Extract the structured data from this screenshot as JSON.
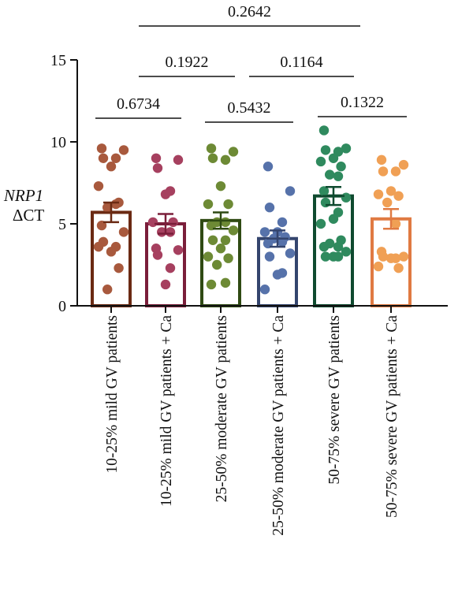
{
  "chart_data": {
    "type": "bar",
    "ylabel_gene": "NRP1",
    "ylabel_metric": "ΔCT",
    "ylim": [
      0,
      15
    ],
    "yticks": [
      "0",
      "5",
      "10",
      "15"
    ],
    "categories": [
      "10-25% mild GV patients",
      "10-25% mild GV patients + Ca",
      "25-50% moderate GV patients",
      "25-50% moderate GV patients + Ca",
      "50-75% severe GV patients",
      "50-75% severe GV patients + Ca"
    ],
    "colors": [
      "#7a3218",
      "#8a2745",
      "#4e6a22",
      "#3f5a8f",
      "#1c5a3e",
      "#e8864a"
    ],
    "point_colors": [
      "#a8593d",
      "#a6405f",
      "#6d8a35",
      "#5672aa",
      "#2f8a5e",
      "#f0a055"
    ],
    "bar_outline_colors": [
      "#6b2a13",
      "#7a1e3a",
      "#2f4a13",
      "#34456e",
      "#0f4a2f",
      "#e07a42"
    ],
    "means": [
      5.7,
      5.0,
      5.2,
      4.1,
      6.7,
      5.3
    ],
    "sem": [
      0.6,
      0.6,
      0.5,
      0.5,
      0.55,
      0.6
    ],
    "points": [
      [
        9.6,
        9.5,
        9.0,
        9.0,
        8.5,
        7.3,
        6.3,
        6.0,
        6.2,
        4.9,
        4.5,
        3.9,
        3.6,
        3.3,
        3.6,
        2.3,
        1.0
      ],
      [
        9.0,
        8.9,
        8.4,
        7.0,
        6.8,
        5.1,
        5.1,
        4.5,
        4.5,
        3.5,
        3.4,
        3.1,
        2.3,
        1.3
      ],
      [
        9.6,
        9.4,
        9.0,
        8.9,
        7.3,
        6.2,
        6.2,
        5.1,
        5.1,
        4.9,
        4.6,
        4.0,
        4.0,
        3.5,
        3.0,
        2.9,
        2.5,
        1.4,
        1.3
      ],
      [
        8.5,
        7.0,
        6.0,
        5.1,
        4.5,
        4.5,
        4.2,
        4.1,
        3.9,
        3.8,
        3.2,
        3.0,
        2.0,
        1.9,
        1.0
      ],
      [
        10.7,
        9.6,
        9.5,
        9.4,
        9.0,
        8.8,
        8.5,
        8.0,
        7.9,
        7.0,
        6.6,
        6.3,
        5.7,
        5.3,
        5.0,
        4.0,
        3.8,
        3.6,
        3.6,
        3.3,
        3.0,
        3.0,
        3.0
      ],
      [
        8.9,
        8.6,
        8.2,
        8.2,
        7.0,
        6.8,
        6.7,
        6.3,
        5.0,
        3.3,
        3.0,
        3.0,
        2.9,
        2.9,
        2.4,
        2.3
      ]
    ],
    "comparisons": [
      {
        "groups": [
          0,
          1
        ],
        "p": "0.6734"
      },
      {
        "groups": [
          2,
          3
        ],
        "p": "0.5432"
      },
      {
        "groups": [
          4,
          5
        ],
        "p": "0.1322"
      },
      {
        "groups": [
          0,
          2
        ],
        "p": "0.1922"
      },
      {
        "groups": [
          2,
          4
        ],
        "p": "0.1164"
      },
      {
        "groups": [
          0,
          4
        ],
        "p": "0.2642"
      }
    ]
  }
}
